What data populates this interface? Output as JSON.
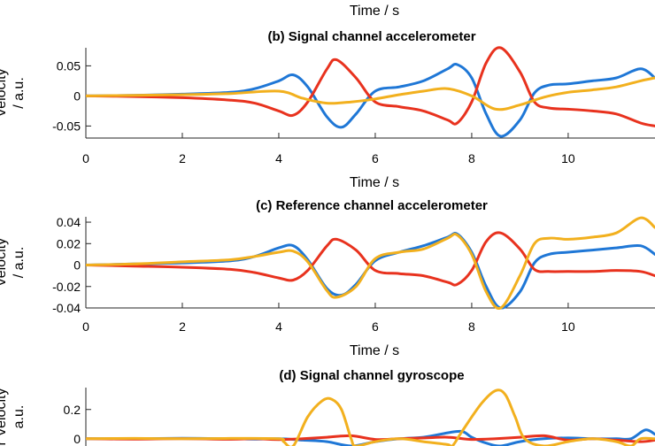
{
  "top_label": "Time / s",
  "chart_data": [
    {
      "type": "line",
      "title": "(b) Signal channel accelerometer",
      "xlabel": "Time / s",
      "ylabel_lines": [
        "Velocity",
        "/ a.u."
      ],
      "xlim": [
        0,
        11.8
      ],
      "ylim": [
        -0.07,
        0.08
      ],
      "xticks": [
        0,
        2,
        4,
        6,
        8,
        10
      ],
      "xtick_labels": [
        "0",
        "2",
        "4",
        "6",
        "8",
        "10"
      ],
      "yticks": [
        0.05,
        0,
        -0.05
      ],
      "ytick_labels": [
        "0.05",
        "0",
        "-0.05"
      ],
      "series": [
        {
          "color": "#1f77d6",
          "x": [
            0,
            1,
            2,
            3,
            3.5,
            4,
            4.3,
            4.6,
            5,
            5.3,
            5.6,
            6,
            6.5,
            7,
            7.5,
            7.7,
            8,
            8.3,
            8.6,
            9,
            9.3,
            9.6,
            10,
            10.5,
            11,
            11.5,
            11.8
          ],
          "y": [
            0,
            0.001,
            0.003,
            0.006,
            0.012,
            0.025,
            0.035,
            0.015,
            -0.035,
            -0.052,
            -0.03,
            0.008,
            0.015,
            0.025,
            0.045,
            0.052,
            0.03,
            -0.03,
            -0.067,
            -0.04,
            0.005,
            0.018,
            0.02,
            0.025,
            0.03,
            0.045,
            0.03
          ]
        },
        {
          "color": "#e8321e",
          "x": [
            0,
            1,
            2,
            3,
            3.5,
            4,
            4.3,
            4.6,
            5,
            5.2,
            5.6,
            6,
            6.5,
            7,
            7.5,
            7.7,
            8,
            8.3,
            8.6,
            9,
            9.3,
            9.6,
            10,
            10.5,
            11,
            11.5,
            11.8
          ],
          "y": [
            0,
            -0.001,
            -0.003,
            -0.007,
            -0.012,
            -0.025,
            -0.032,
            -0.01,
            0.045,
            0.06,
            0.03,
            -0.01,
            -0.018,
            -0.025,
            -0.04,
            -0.045,
            -0.01,
            0.055,
            0.08,
            0.04,
            -0.01,
            -0.02,
            -0.022,
            -0.025,
            -0.03,
            -0.045,
            -0.05
          ]
        },
        {
          "color": "#f2b01e",
          "x": [
            0,
            1,
            2,
            3,
            4,
            4.5,
            5,
            5.5,
            6,
            6.5,
            7,
            7.5,
            8,
            8.5,
            9,
            9.5,
            10,
            10.5,
            11,
            11.5,
            11.8
          ],
          "y": [
            0,
            0.001,
            0.002,
            0.004,
            0.008,
            -0.004,
            -0.012,
            -0.01,
            -0.005,
            0.002,
            0.008,
            0.012,
            0.0,
            -0.022,
            -0.015,
            -0.002,
            0.006,
            0.01,
            0.015,
            0.025,
            0.03
          ]
        }
      ]
    },
    {
      "type": "line",
      "title": "(c) Reference channel accelerometer",
      "xlabel": "Time / s",
      "ylabel_lines": [
        "Velocity",
        "/ a.u."
      ],
      "xlim": [
        0,
        11.8
      ],
      "ylim": [
        -0.04,
        0.045
      ],
      "xticks": [
        0,
        2,
        4,
        6,
        8,
        10
      ],
      "xtick_labels": [
        "0",
        "2",
        "4",
        "6",
        "8",
        "10"
      ],
      "yticks": [
        0.04,
        0.02,
        0,
        -0.02,
        -0.04
      ],
      "ytick_labels": [
        "0.04",
        "0.02",
        "0",
        "-0.02",
        "-0.04"
      ],
      "series": [
        {
          "color": "#1f77d6",
          "x": [
            0,
            1,
            2,
            3,
            3.5,
            4,
            4.3,
            4.6,
            5,
            5.3,
            5.6,
            6,
            6.5,
            7,
            7.5,
            7.7,
            8,
            8.3,
            8.6,
            9,
            9.3,
            9.6,
            10,
            10.5,
            11,
            11.5,
            11.8
          ],
          "y": [
            0,
            0.001,
            0.002,
            0.004,
            0.008,
            0.016,
            0.018,
            0.005,
            -0.022,
            -0.028,
            -0.018,
            0.004,
            0.012,
            0.018,
            0.026,
            0.029,
            0.012,
            -0.02,
            -0.04,
            -0.025,
            0.002,
            0.01,
            0.012,
            0.014,
            0.016,
            0.018,
            0.01
          ]
        },
        {
          "color": "#e8321e",
          "x": [
            0,
            1,
            2,
            3,
            3.5,
            4,
            4.3,
            4.6,
            5,
            5.2,
            5.6,
            6,
            6.5,
            7,
            7.5,
            7.7,
            8,
            8.3,
            8.6,
            9,
            9.3,
            9.6,
            10,
            10.5,
            11,
            11.5,
            11.8
          ],
          "y": [
            0,
            -0.001,
            -0.002,
            -0.004,
            -0.007,
            -0.012,
            -0.014,
            -0.005,
            0.018,
            0.024,
            0.014,
            -0.005,
            -0.008,
            -0.01,
            -0.016,
            -0.018,
            -0.005,
            0.022,
            0.03,
            0.015,
            -0.004,
            -0.006,
            -0.006,
            -0.006,
            -0.005,
            -0.006,
            -0.01
          ]
        },
        {
          "color": "#f2b01e",
          "x": [
            0,
            1,
            2,
            3,
            3.5,
            4,
            4.3,
            4.6,
            5,
            5.2,
            5.6,
            6,
            6.5,
            7,
            7.5,
            7.7,
            8,
            8.3,
            8.6,
            9,
            9.3,
            9.6,
            10,
            10.5,
            11,
            11.5,
            11.8
          ],
          "y": [
            0,
            0.001,
            0.003,
            0.005,
            0.008,
            0.012,
            0.013,
            0.003,
            -0.024,
            -0.03,
            -0.02,
            0.006,
            0.012,
            0.015,
            0.025,
            0.028,
            0.01,
            -0.025,
            -0.04,
            -0.01,
            0.02,
            0.025,
            0.024,
            0.026,
            0.03,
            0.044,
            0.035
          ]
        }
      ]
    },
    {
      "type": "line",
      "title": "(d) Signal channel gyroscope",
      "xlabel": "",
      "ylabel_lines": [
        "r Velocity",
        "a.u."
      ],
      "xlim": [
        0,
        11.8
      ],
      "ylim": [
        -0.05,
        0.35
      ],
      "xticks": [],
      "xtick_labels": [],
      "yticks": [
        0.2,
        0
      ],
      "ytick_labels": [
        "0.2",
        "0"
      ],
      "series": [
        {
          "color": "#1f77d6",
          "x": [
            0,
            1,
            2,
            3,
            3.5,
            4,
            4.5,
            5,
            5.5,
            6,
            6.5,
            7,
            7.5,
            7.8,
            8,
            8.3,
            8.6,
            9,
            9.5,
            10,
            10.5,
            11,
            11.3,
            11.6,
            11.8
          ],
          "y": [
            0,
            0,
            0.003,
            0,
            -0.003,
            0.0,
            -0.01,
            -0.02,
            -0.05,
            -0.02,
            0.0,
            0.01,
            0.04,
            0.05,
            0.01,
            -0.03,
            -0.05,
            -0.02,
            0.0,
            0.005,
            0.0,
            0.0,
            0.0,
            0.06,
            0.03
          ]
        },
        {
          "color": "#e8321e",
          "x": [
            0,
            1,
            2,
            3,
            3.5,
            4,
            4.5,
            5,
            5.5,
            6,
            6.5,
            7,
            7.5,
            8,
            8.5,
            9,
            9.5,
            10,
            10.5,
            11,
            11.5,
            11.8
          ],
          "y": [
            0,
            -0.003,
            0.0,
            -0.004,
            0.0,
            -0.006,
            0.0,
            0.01,
            0.02,
            -0.005,
            0.0,
            0.005,
            0.01,
            -0.005,
            0.0,
            0.01,
            0.02,
            -0.01,
            0.0,
            -0.01,
            -0.02,
            -0.01
          ]
        },
        {
          "color": "#f2b01e",
          "x": [
            0,
            1,
            2,
            3,
            4,
            4.1,
            4.3,
            4.6,
            4.9,
            5.1,
            5.3,
            5.5,
            5.6,
            6,
            6.5,
            7,
            7.5,
            7.6,
            7.8,
            8.2,
            8.5,
            8.7,
            8.9,
            9.1,
            9.5,
            10,
            10.5,
            11,
            11.3,
            11.5,
            11.8
          ],
          "y": [
            0,
            0.002,
            0.0,
            0.002,
            0.0,
            -0.02,
            -0.05,
            0.15,
            0.26,
            0.27,
            0.2,
            0.0,
            -0.05,
            -0.02,
            0.0,
            -0.02,
            -0.04,
            -0.05,
            0.05,
            0.24,
            0.33,
            0.3,
            0.15,
            0.0,
            -0.05,
            -0.02,
            0.0,
            -0.02,
            -0.05,
            0.0,
            0.0
          ]
        }
      ]
    }
  ]
}
